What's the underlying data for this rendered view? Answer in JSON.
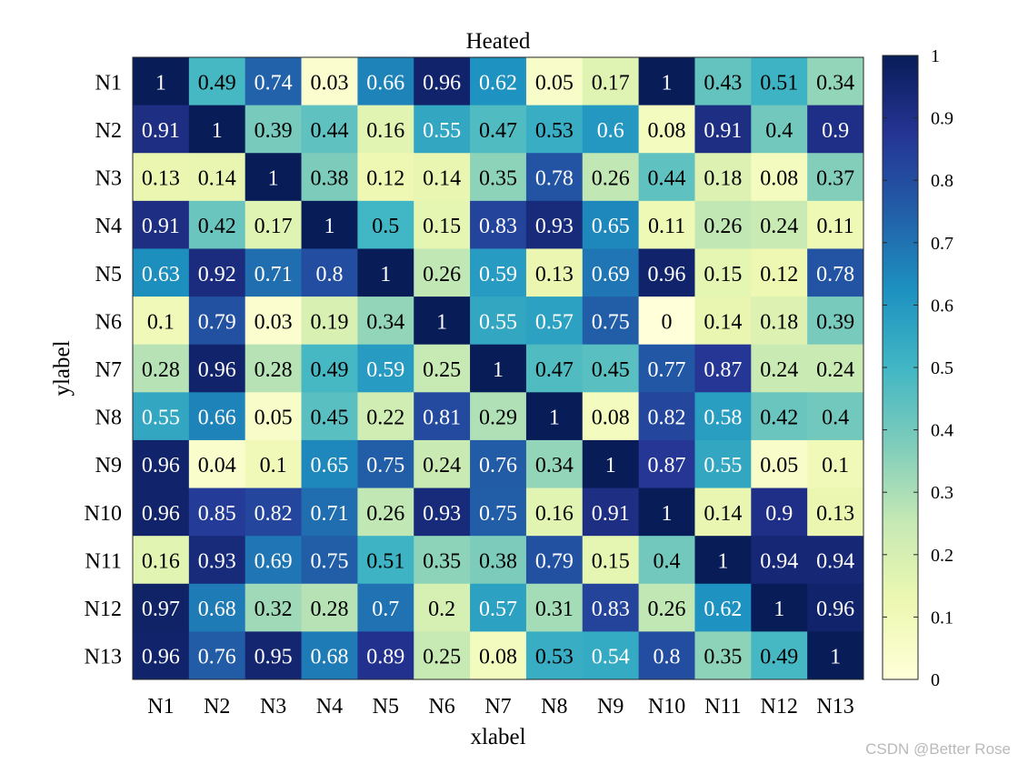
{
  "chart_data": {
    "type": "heatmap",
    "title": "Heated",
    "xlabel": "xlabel",
    "ylabel": "ylabel",
    "x_categories": [
      "N1",
      "N2",
      "N3",
      "N4",
      "N5",
      "N6",
      "N7",
      "N8",
      "N9",
      "N10",
      "N11",
      "N12",
      "N13"
    ],
    "y_categories": [
      "N1",
      "N2",
      "N3",
      "N4",
      "N5",
      "N6",
      "N7",
      "N8",
      "N9",
      "N10",
      "N11",
      "N12",
      "N13"
    ],
    "values": [
      [
        1,
        0.49,
        0.74,
        0.03,
        0.66,
        0.96,
        0.62,
        0.05,
        0.17,
        1,
        0.43,
        0.51,
        0.34
      ],
      [
        0.91,
        1,
        0.39,
        0.44,
        0.16,
        0.55,
        0.47,
        0.53,
        0.6,
        0.08,
        0.91,
        0.4,
        0.9
      ],
      [
        0.13,
        0.14,
        1,
        0.38,
        0.12,
        0.14,
        0.35,
        0.78,
        0.26,
        0.44,
        0.18,
        0.08,
        0.37
      ],
      [
        0.91,
        0.42,
        0.17,
        1,
        0.5,
        0.15,
        0.83,
        0.93,
        0.65,
        0.11,
        0.26,
        0.24,
        0.11
      ],
      [
        0.63,
        0.92,
        0.71,
        0.8,
        1,
        0.26,
        0.59,
        0.13,
        0.69,
        0.96,
        0.15,
        0.12,
        0.78
      ],
      [
        0.1,
        0.79,
        0.03,
        0.19,
        0.34,
        1,
        0.55,
        0.57,
        0.75,
        0,
        0.14,
        0.18,
        0.39
      ],
      [
        0.28,
        0.96,
        0.28,
        0.49,
        0.59,
        0.25,
        1,
        0.47,
        0.45,
        0.77,
        0.87,
        0.24,
        0.24
      ],
      [
        0.55,
        0.66,
        0.05,
        0.45,
        0.22,
        0.81,
        0.29,
        1,
        0.08,
        0.82,
        0.58,
        0.42,
        0.4
      ],
      [
        0.96,
        0.04,
        0.1,
        0.65,
        0.75,
        0.24,
        0.76,
        0.34,
        1,
        0.87,
        0.55,
        0.05,
        0.1
      ],
      [
        0.96,
        0.85,
        0.82,
        0.71,
        0.26,
        0.93,
        0.75,
        0.16,
        0.91,
        1,
        0.14,
        0.9,
        0.13
      ],
      [
        0.16,
        0.93,
        0.69,
        0.75,
        0.51,
        0.35,
        0.38,
        0.79,
        0.15,
        0.4,
        1,
        0.94,
        0.94
      ],
      [
        0.97,
        0.68,
        0.32,
        0.28,
        0.7,
        0.2,
        0.57,
        0.31,
        0.83,
        0.26,
        0.62,
        1,
        0.96
      ],
      [
        0.96,
        0.76,
        0.95,
        0.68,
        0.89,
        0.25,
        0.08,
        0.53,
        0.54,
        0.8,
        0.35,
        0.49,
        1
      ]
    ],
    "colorbar": {
      "range": [
        0,
        1
      ],
      "ticks": [
        0,
        0.1,
        0.2,
        0.3,
        0.4,
        0.5,
        0.6,
        0.7,
        0.8,
        0.9,
        1
      ],
      "colormap": "YlGnBu",
      "colormap_stops": [
        "#ffffd9",
        "#edf8b1",
        "#c7e9b4",
        "#7fcdbb",
        "#41b6c4",
        "#1d91c0",
        "#225ea8",
        "#253494",
        "#081d58"
      ]
    }
  },
  "watermark": "CSDN @Better Rose"
}
